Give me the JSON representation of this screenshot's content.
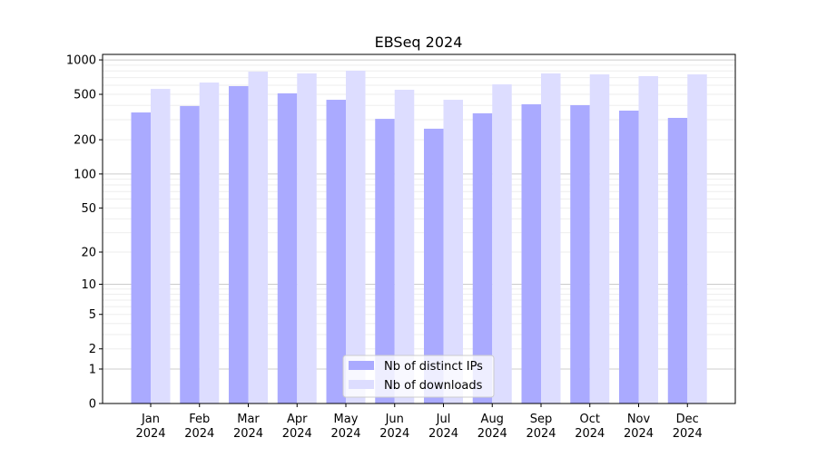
{
  "chart_data": {
    "type": "bar",
    "title": "EBSeq 2024",
    "xlabel": "",
    "ylabel": "",
    "yscale": "symlog (log of 1+value)",
    "ylim": [
      0,
      1117
    ],
    "yticks": [
      0,
      1,
      2,
      5,
      10,
      20,
      50,
      100,
      200,
      500,
      1000
    ],
    "ytick_labels": [
      "0",
      "1",
      "2",
      "5",
      "10",
      "20",
      "50",
      "100",
      "200",
      "500",
      "1000"
    ],
    "categories": [
      "Jan\n2024",
      "Feb\n2024",
      "Mar\n2024",
      "Apr\n2024",
      "May\n2024",
      "Jun\n2024",
      "Jul\n2024",
      "Aug\n2024",
      "Sep\n2024",
      "Oct\n2024",
      "Nov\n2024",
      "Dec\n2024"
    ],
    "grid": true,
    "legend_placement": "lower-center",
    "series": [
      {
        "name": "Nb of distinct IPs",
        "color": "#aaaaff",
        "values": [
          347,
          395,
          590,
          510,
          448,
          305,
          250,
          341,
          409,
          402,
          360,
          311
        ]
      },
      {
        "name": "Nb of downloads",
        "color": "#ddddff",
        "values": [
          558,
          634,
          790,
          762,
          805,
          548,
          448,
          611,
          762,
          747,
          721,
          747
        ]
      }
    ]
  }
}
